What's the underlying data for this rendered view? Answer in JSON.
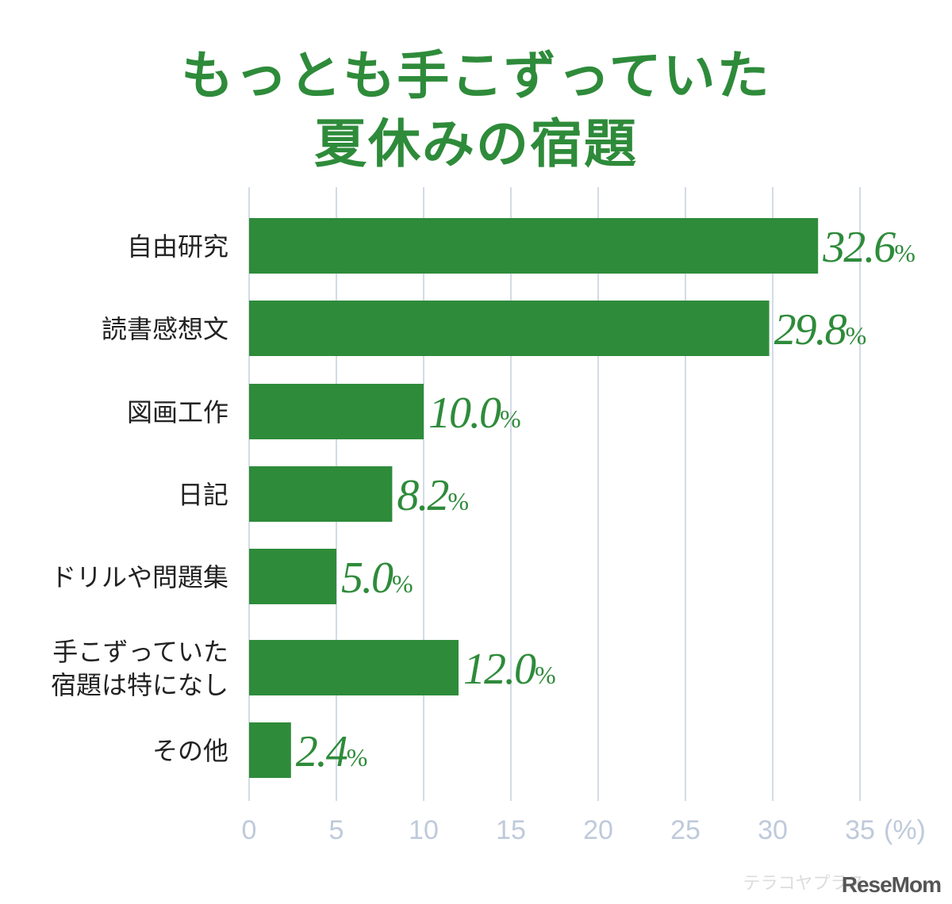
{
  "title": {
    "line1": "もっとも手こずっていた",
    "line2": "夏休みの宿題"
  },
  "colors": {
    "bar": "#2e8b3a",
    "title": "#2e8b3a",
    "value_label": "#2e8b3a",
    "grid": "#c8d2df",
    "tick": "#bfcadb",
    "category": "#222222"
  },
  "chart_data": {
    "type": "bar",
    "orientation": "horizontal",
    "title": "もっとも手こずっていた夏休みの宿題",
    "categories": [
      [
        "自由研究"
      ],
      [
        "読書感想文"
      ],
      [
        "図画工作"
      ],
      [
        "日記"
      ],
      [
        "ドリルや問題集"
      ],
      [
        "手こずっていた",
        "宿題は特になし"
      ],
      [
        "その他"
      ]
    ],
    "values": [
      32.6,
      29.8,
      10.0,
      8.2,
      5.0,
      12.0,
      2.4
    ],
    "value_labels": [
      "32.6",
      "29.8",
      "10.0",
      "8.2",
      "5.0",
      "12.0",
      "2.4"
    ],
    "value_unit": "%",
    "xlim": [
      0,
      35
    ],
    "x_ticks": [
      "0",
      "5",
      "10",
      "15",
      "20",
      "25",
      "30",
      "35"
    ],
    "x_unit_label": "(%)",
    "grid": true
  },
  "watermark": {
    "sub": "テラコヤプラス",
    "main": "ReseMom"
  }
}
